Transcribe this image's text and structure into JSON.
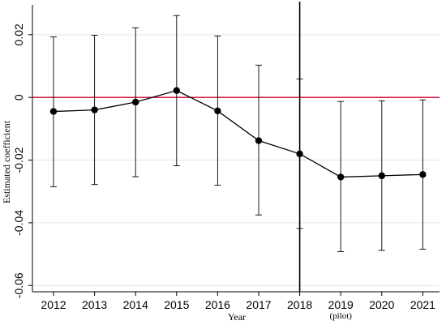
{
  "chart_data": {
    "type": "line",
    "xlabel": "Year",
    "ylabel": "Estimated coefficient",
    "ylim": [
      -0.062,
      0.029
    ],
    "yticks": [
      0.02,
      0,
      -0.02,
      -0.04,
      -0.06
    ],
    "ytick_labels": [
      "0.02",
      "0",
      "-0.02",
      "-0.04",
      "-0.06"
    ],
    "categories": [
      "2012",
      "2013",
      "2014",
      "2015",
      "2016",
      "2017",
      "2018",
      "2019",
      "2020",
      "2021"
    ],
    "category_notes": [
      "",
      "",
      "",
      "",
      "",
      "",
      "",
      "(pilot)",
      "",
      ""
    ],
    "series": [
      {
        "values": [
          -0.0045,
          -0.004,
          -0.0015,
          0.0022,
          -0.0043,
          -0.0138,
          -0.018,
          -0.0254,
          -0.025,
          -0.0246
        ],
        "ci_upper": [
          0.0193,
          0.0198,
          0.0222,
          0.0261,
          0.0196,
          0.0103,
          0.0059,
          -0.0013,
          -0.0011,
          -0.0008
        ],
        "ci_lower": [
          -0.0285,
          -0.0278,
          -0.0253,
          -0.0218,
          -0.028,
          -0.0375,
          -0.0418,
          -0.0492,
          -0.0488,
          -0.0484
        ]
      }
    ],
    "reference_hline": 0,
    "reference_vline": "2018",
    "grid": "horizontal",
    "colors": {
      "series": "#000000",
      "hline": "#cc0033",
      "grid": "#e6e6e6",
      "vline": "#000000"
    }
  }
}
